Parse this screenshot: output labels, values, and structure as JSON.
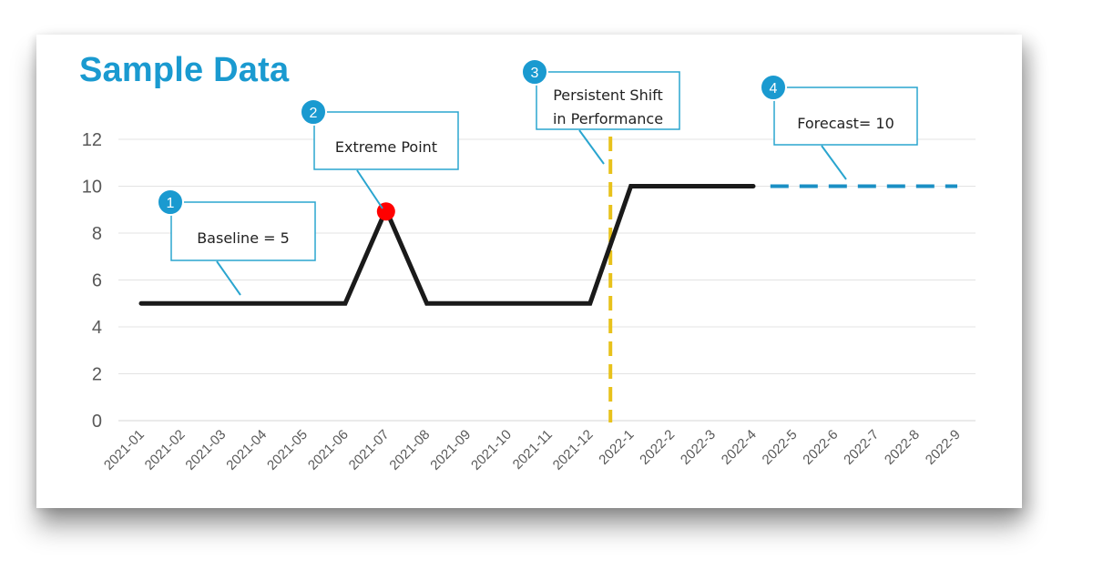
{
  "title": "Sample Data",
  "colors": {
    "title": "#1a9ad0",
    "line": "#1a1a1a",
    "extreme_point": "#ff0000",
    "forecast": "#1a8fc4",
    "shift_marker": "#e8c21c",
    "callout_border": "#2aa5cf",
    "badge": "#1a9ad0",
    "gridline": "#e3e3e3"
  },
  "chart_data": {
    "type": "line",
    "categories": [
      "2021-01",
      "2021-02",
      "2021-03",
      "2021-04",
      "2021-05",
      "2021-06",
      "2021-07",
      "2021-08",
      "2021-09",
      "2021-10",
      "2021-11",
      "2021-12",
      "2022-1",
      "2022-2",
      "2022-3",
      "2022-4",
      "2022-5",
      "2022-6",
      "2022-7",
      "2022-8",
      "2022-9"
    ],
    "series": [
      {
        "style": "solid",
        "color": "#1a1a1a",
        "points": [
          {
            "x": "2021-01",
            "y": 5
          },
          {
            "x": "2021-02",
            "y": 5
          },
          {
            "x": "2021-03",
            "y": 5
          },
          {
            "x": "2021-04",
            "y": 5
          },
          {
            "x": "2021-05",
            "y": 5
          },
          {
            "x": "2021-06",
            "y": 5
          },
          {
            "x": "2021-07",
            "y": 9
          },
          {
            "x": "2021-08",
            "y": 5
          },
          {
            "x": "2021-09",
            "y": 5
          },
          {
            "x": "2021-10",
            "y": 5
          },
          {
            "x": "2021-11",
            "y": 5
          },
          {
            "x": "2021-12",
            "y": 5
          },
          {
            "x": "2022-1",
            "y": 10
          },
          {
            "x": "2022-2",
            "y": 10
          },
          {
            "x": "2022-3",
            "y": 10
          },
          {
            "x": "2022-4",
            "y": 10
          }
        ]
      },
      {
        "style": "dashed",
        "color": "#1a8fc4",
        "points": [
          {
            "x": "2022-5",
            "y": 10
          },
          {
            "x": "2022-6",
            "y": 10
          },
          {
            "x": "2022-7",
            "y": 10
          },
          {
            "x": "2022-8",
            "y": 10
          },
          {
            "x": "2022-9",
            "y": 10
          }
        ]
      }
    ],
    "highlight_point": {
      "x": "2021-07",
      "y": 9,
      "color": "#ff0000"
    },
    "shift_marker_x": 11.5,
    "ylim": [
      0,
      12
    ],
    "yticks": [
      0,
      2,
      4,
      6,
      8,
      10,
      12
    ],
    "grid": true,
    "xlabel": "",
    "ylabel": "",
    "annotations": [
      {
        "number": "1",
        "lines": [
          "Baseline = 5"
        ]
      },
      {
        "number": "2",
        "lines": [
          "Extreme Point"
        ]
      },
      {
        "number": "3",
        "lines": [
          "Persistent Shift",
          "in Performance"
        ]
      },
      {
        "number": "4",
        "lines": [
          "Forecast= 10"
        ]
      }
    ]
  }
}
